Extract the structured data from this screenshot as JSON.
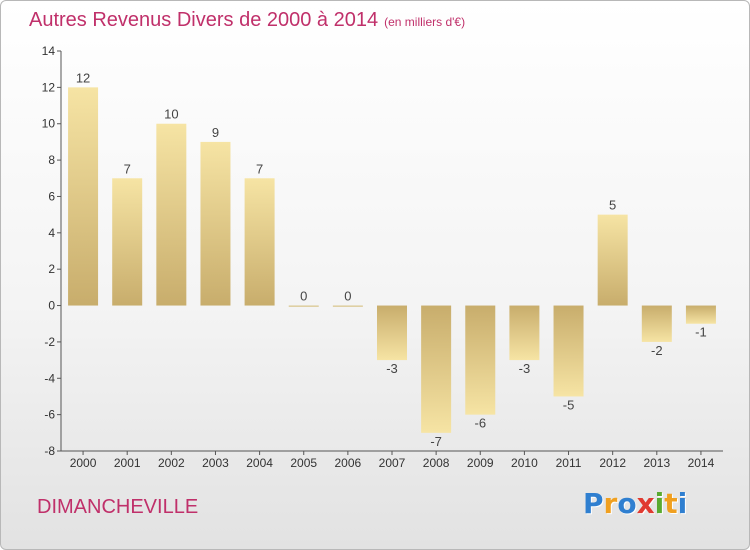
{
  "chart_data": {
    "type": "bar",
    "title": "Autres Revenus Divers de 2000 à 2014",
    "subtitle": "(en milliers d'€)",
    "categories": [
      "2000",
      "2001",
      "2002",
      "2003",
      "2004",
      "2005",
      "2006",
      "2007",
      "2008",
      "2009",
      "2010",
      "2011",
      "2012",
      "2013",
      "2014"
    ],
    "values": [
      12,
      7,
      10,
      9,
      7,
      0,
      0,
      -3,
      -7,
      -6,
      -3,
      -5,
      5,
      -2,
      -1
    ],
    "data_labels": [
      "12",
      "7",
      "10",
      "9",
      "7",
      "0",
      "0",
      "-3",
      "-7",
      "-6",
      "-3",
      "-5",
      "5",
      "-2",
      "-1"
    ],
    "ylim": [
      -8,
      14
    ],
    "yticks": [
      14,
      12,
      10,
      8,
      6,
      4,
      2,
      0,
      -2,
      -4,
      -6,
      -8
    ],
    "grid": false,
    "colors": {
      "bar_light": "#f6e4a4",
      "bar_dark": "#c8ad6c",
      "title": "#c0306a"
    }
  },
  "footer": {
    "commune": "DIMANCHEVILLE",
    "logo_letters": [
      {
        "ch": "P",
        "color": "#2f7fd0"
      },
      {
        "ch": "r",
        "color": "#f0a020"
      },
      {
        "ch": "o",
        "color": "#2f7fd0"
      },
      {
        "ch": "x",
        "color": "#e03a30"
      },
      {
        "ch": "i",
        "color": "#5aaa30"
      },
      {
        "ch": "t",
        "color": "#f0a020"
      },
      {
        "ch": "i",
        "color": "#2f7fd0"
      }
    ]
  }
}
